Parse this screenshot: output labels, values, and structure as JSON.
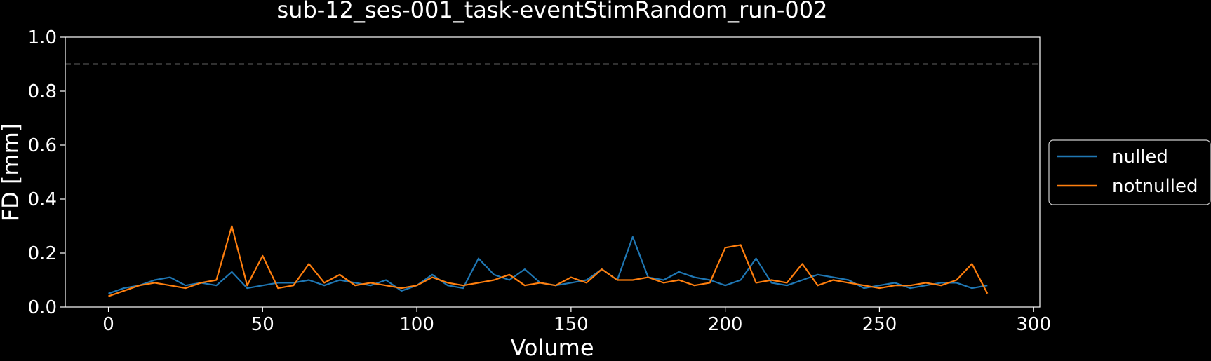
{
  "chart_data": {
    "type": "line",
    "title": "sub-12_ses-001_task-eventStimRandom_run-002",
    "xlabel": "Volume",
    "ylabel": "FD [mm]",
    "xlim": [
      -14,
      302
    ],
    "ylim": [
      0.0,
      1.0
    ],
    "x_ticks": [
      0,
      50,
      100,
      150,
      200,
      250,
      300
    ],
    "y_ticks": [
      0.0,
      0.2,
      0.4,
      0.6,
      0.8,
      1.0
    ],
    "x_tick_labels": [
      "0",
      "50",
      "100",
      "150",
      "200",
      "250",
      "300"
    ],
    "y_tick_labels": [
      "0.0",
      "0.2",
      "0.4",
      "0.6",
      "0.8",
      "1.0"
    ],
    "threshold": 0.9,
    "grid": false,
    "legend_position": "center-right-outside",
    "colors": {
      "background": "#000000",
      "axes": "#ffffff",
      "threshold": "#bfbfbf",
      "nulled": "#1f77b4",
      "notnulled": "#ff7f0e"
    },
    "series": [
      {
        "name": "nulled",
        "color": "#1f77b4",
        "x_start": 0,
        "x_step": 5,
        "values": [
          0.05,
          0.07,
          0.08,
          0.1,
          0.11,
          0.08,
          0.09,
          0.08,
          0.13,
          0.07,
          0.08,
          0.09,
          0.09,
          0.1,
          0.08,
          0.1,
          0.09,
          0.08,
          0.1,
          0.06,
          0.08,
          0.12,
          0.08,
          0.07,
          0.18,
          0.12,
          0.1,
          0.14,
          0.09,
          0.08,
          0.09,
          0.1,
          0.14,
          0.1,
          0.26,
          0.11,
          0.1,
          0.13,
          0.11,
          0.1,
          0.08,
          0.1,
          0.18,
          0.09,
          0.08,
          0.1,
          0.12,
          0.11,
          0.1,
          0.07,
          0.08,
          0.09,
          0.07,
          0.08,
          0.09,
          0.09,
          0.07,
          0.08
        ]
      },
      {
        "name": "notnulled",
        "color": "#ff7f0e",
        "x_start": 0,
        "x_step": 5,
        "values": [
          0.04,
          0.06,
          0.08,
          0.09,
          0.08,
          0.07,
          0.09,
          0.1,
          0.3,
          0.08,
          0.19,
          0.07,
          0.08,
          0.16,
          0.09,
          0.12,
          0.08,
          0.09,
          0.08,
          0.07,
          0.08,
          0.11,
          0.09,
          0.08,
          0.09,
          0.1,
          0.12,
          0.08,
          0.09,
          0.08,
          0.11,
          0.09,
          0.14,
          0.1,
          0.1,
          0.11,
          0.09,
          0.1,
          0.08,
          0.09,
          0.22,
          0.23,
          0.09,
          0.1,
          0.09,
          0.16,
          0.08,
          0.1,
          0.09,
          0.08,
          0.07,
          0.08,
          0.08,
          0.09,
          0.08,
          0.1,
          0.16,
          0.05
        ]
      }
    ]
  }
}
